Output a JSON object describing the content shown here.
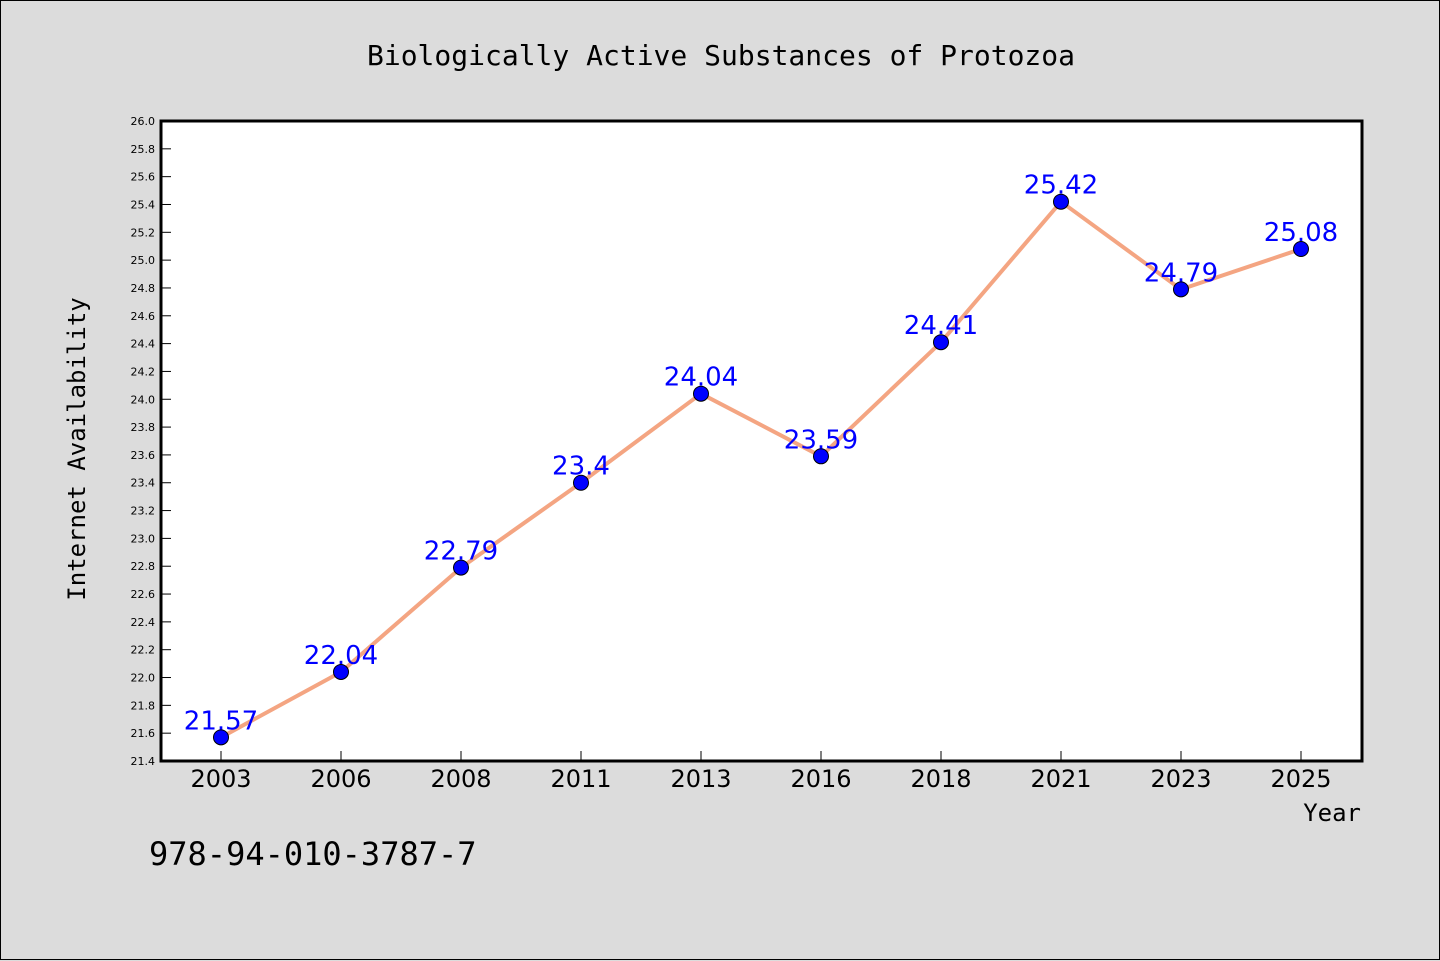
{
  "colors": {
    "background": "#dcdcdc",
    "plot_background": "#ffffff",
    "line": "#f4a582",
    "marker": "#0000ff",
    "data_label": "#0000ff"
  },
  "footer": {
    "isbn": "978-94-010-3787-7"
  },
  "chart_data": {
    "type": "line",
    "title": "Biologically Active Substances of Protozoa",
    "xlabel": "Year",
    "ylabel": "Internet Availability",
    "categories": [
      "2003",
      "2006",
      "2008",
      "2011",
      "2013",
      "2016",
      "2018",
      "2021",
      "2023",
      "2025"
    ],
    "series": [
      {
        "values": [
          21.57,
          22.04,
          22.79,
          23.4,
          24.04,
          23.59,
          24.41,
          25.42,
          24.79,
          25.08
        ],
        "data_labels": [
          "21.57",
          "22.04",
          "22.79",
          "23.4",
          "24.04",
          "23.59",
          "24.41",
          "25.42",
          "24.79",
          "25.08"
        ]
      }
    ],
    "ylim": [
      21.4,
      26.0
    ],
    "yticks": [
      "21.4",
      "21.6",
      "21.8",
      "22.0",
      "22.2",
      "22.4",
      "22.6",
      "22.8",
      "23.0",
      "23.2",
      "23.4",
      "23.6",
      "23.8",
      "24.0",
      "24.2",
      "24.4",
      "24.6",
      "24.8",
      "25.0",
      "25.2",
      "25.4",
      "25.6",
      "25.8",
      "26.0"
    ],
    "grid": false,
    "legend": "none",
    "markers": "circle"
  }
}
